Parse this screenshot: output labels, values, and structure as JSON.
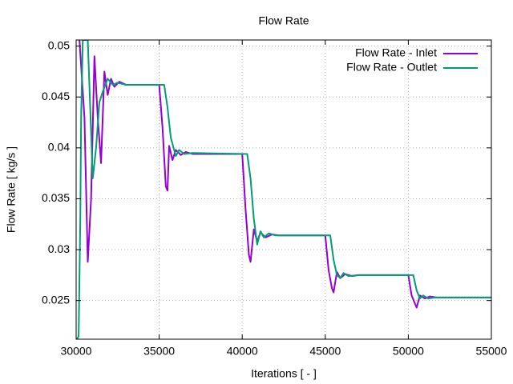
{
  "chart_data": {
    "type": "line",
    "title": "Flow Rate",
    "xlabel": "Iterations [ - ]",
    "ylabel": "Flow Rate [ kg/s ]",
    "xlim": [
      30000,
      55000
    ],
    "xticks": [
      30000,
      35000,
      40000,
      45000,
      50000,
      55000
    ],
    "ylim": [
      0.0212,
      0.0506
    ],
    "yticks": [
      0.025,
      0.03,
      0.035,
      0.04,
      0.045,
      0.05
    ],
    "grid": true,
    "legend": "top-right",
    "series": [
      {
        "name": "Flow Rate - Inlet",
        "color": "#9400d3",
        "x": [
          30200,
          30500,
          30700,
          30900,
          31100,
          31300,
          31500,
          31700,
          31900,
          32100,
          32300,
          32600,
          33000,
          35000,
          35200,
          35400,
          35500,
          35600,
          35800,
          36000,
          36300,
          36600,
          37000,
          40000,
          40200,
          40400,
          40500,
          40700,
          40900,
          41100,
          41400,
          41800,
          42200,
          45000,
          45200,
          45400,
          45500,
          45700,
          45900,
          46200,
          46600,
          47000,
          50000,
          50200,
          50500,
          50700,
          51000,
          51300,
          51700,
          55000
        ],
        "values": [
          0.0506,
          0.043,
          0.0288,
          0.035,
          0.049,
          0.043,
          0.0385,
          0.0475,
          0.0452,
          0.0468,
          0.046,
          0.0465,
          0.0462,
          0.0462,
          0.042,
          0.0362,
          0.0358,
          0.0402,
          0.0388,
          0.0398,
          0.0393,
          0.0396,
          0.0394,
          0.0394,
          0.034,
          0.0295,
          0.0288,
          0.032,
          0.0308,
          0.0317,
          0.0312,
          0.0315,
          0.0314,
          0.0314,
          0.028,
          0.0262,
          0.0258,
          0.0278,
          0.0272,
          0.0276,
          0.0274,
          0.0275,
          0.0275,
          0.0255,
          0.0243,
          0.0255,
          0.0252,
          0.0254,
          0.0253,
          0.0253
        ]
      },
      {
        "name": "Flow Rate - Outlet",
        "color": "#009e73",
        "x": [
          30050,
          30150,
          30250,
          30300,
          30400,
          30700,
          31000,
          31200,
          31400,
          31600,
          31900,
          32200,
          32500,
          33000,
          35300,
          35500,
          35700,
          36000,
          36200,
          36500,
          37000,
          40300,
          40500,
          40700,
          40900,
          41100,
          41300,
          41600,
          42000,
          45300,
          45500,
          45700,
          45900,
          46100,
          46400,
          47000,
          50300,
          50500,
          50700,
          50900,
          51200,
          51600,
          55000
        ],
        "values": [
          0.0212,
          0.0215,
          0.033,
          0.043,
          0.0506,
          0.0506,
          0.037,
          0.04,
          0.0445,
          0.0455,
          0.0468,
          0.0462,
          0.0464,
          0.0462,
          0.0462,
          0.044,
          0.041,
          0.0392,
          0.0398,
          0.0394,
          0.0395,
          0.0394,
          0.037,
          0.033,
          0.0305,
          0.0318,
          0.0312,
          0.0316,
          0.0314,
          0.0314,
          0.029,
          0.0275,
          0.0272,
          0.0277,
          0.0274,
          0.0275,
          0.0275,
          0.026,
          0.0252,
          0.0255,
          0.0252,
          0.0253,
          0.0253
        ]
      }
    ]
  }
}
